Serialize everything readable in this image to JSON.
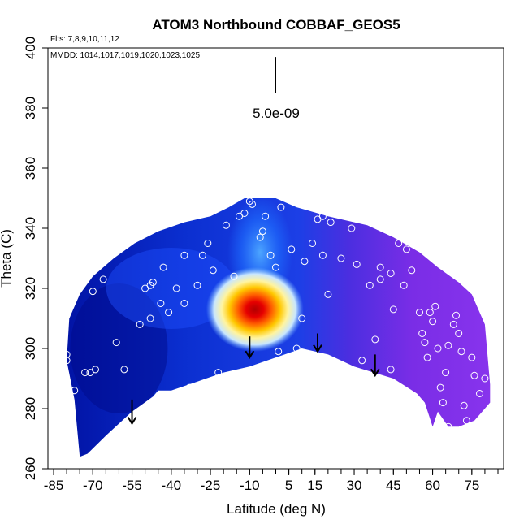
{
  "chart_data": {
    "type": "heatmap",
    "title": "ATOM3 Northbound COBBAF_GEOS5",
    "subtitle_flights": "Flts: 7,8,9,10,11,12",
    "subtitle_dates": "MMDD: 1014,1017,1019,1020,1023,1025",
    "xlabel": "Latitude (deg N)",
    "ylabel": "Theta (C)",
    "xlim": [
      -85,
      85
    ],
    "ylim": [
      260,
      400
    ],
    "x_ticks": [
      -85,
      -70,
      -55,
      -40,
      -25,
      -10,
      5,
      15,
      30,
      45,
      60,
      75
    ],
    "y_ticks": [
      260,
      280,
      300,
      320,
      340,
      360,
      380,
      400
    ],
    "scale_bar_label": "5.0e-09",
    "grid": false,
    "colormap": [
      "#00008b",
      "#0033cc",
      "#1e64ff",
      "#6fb4ff",
      "#c8e6ff",
      "#fff4a0",
      "#ffc800",
      "#ff6000",
      "#e60000",
      "#b20000",
      "#8a2be2"
    ],
    "field_upper_boundary": [
      {
        "x": -54,
        "y": 335
      },
      {
        "x": -45,
        "y": 339
      },
      {
        "x": -35,
        "y": 342
      },
      {
        "x": -25,
        "y": 344
      },
      {
        "x": -18,
        "y": 347
      },
      {
        "x": -12,
        "y": 350
      },
      {
        "x": 0,
        "y": 350
      },
      {
        "x": 8,
        "y": 347
      },
      {
        "x": 20,
        "y": 344
      },
      {
        "x": 35,
        "y": 341
      },
      {
        "x": 45,
        "y": 337
      },
      {
        "x": 55,
        "y": 332
      },
      {
        "x": 62,
        "y": 327
      },
      {
        "x": 70,
        "y": 322
      },
      {
        "x": 75,
        "y": 318
      },
      {
        "x": 80,
        "y": 308
      }
    ],
    "field_right_boundary": [
      {
        "x": 82,
        "y": 288
      },
      {
        "x": 82,
        "y": 282
      }
    ],
    "field_lower_boundary": [
      {
        "x": 76,
        "y": 276
      },
      {
        "x": 70,
        "y": 274
      },
      {
        "x": 66,
        "y": 274
      },
      {
        "x": 62,
        "y": 279
      },
      {
        "x": 60,
        "y": 274
      },
      {
        "x": 57,
        "y": 282
      },
      {
        "x": 54,
        "y": 285
      },
      {
        "x": 45,
        "y": 290
      },
      {
        "x": 30,
        "y": 294
      },
      {
        "x": 20,
        "y": 298
      },
      {
        "x": 10,
        "y": 300
      },
      {
        "x": 0,
        "y": 297
      },
      {
        "x": -10,
        "y": 294
      },
      {
        "x": -20,
        "y": 292
      },
      {
        "x": -30,
        "y": 289
      },
      {
        "x": -40,
        "y": 286
      },
      {
        "x": -45,
        "y": 286
      },
      {
        "x": -47,
        "y": 284
      },
      {
        "x": -55,
        "y": 279
      },
      {
        "x": -65,
        "y": 271
      },
      {
        "x": -72,
        "y": 265
      },
      {
        "x": -75,
        "y": 264
      }
    ],
    "field_left_boundary": [
      {
        "x": -77,
        "y": 283
      },
      {
        "x": -80,
        "y": 296
      },
      {
        "x": -79,
        "y": 310
      },
      {
        "x": -75,
        "y": 318
      },
      {
        "x": -70,
        "y": 324
      },
      {
        "x": -62,
        "y": 330
      }
    ],
    "field_features": [
      {
        "name": "background-low",
        "x": -60,
        "y": 300,
        "value": 0.05
      },
      {
        "name": "mid-blue",
        "x": -40,
        "y": 320,
        "value": 0.18
      },
      {
        "name": "light-column",
        "x": -6,
        "y": 332,
        "value": 0.35
      },
      {
        "name": "maximum",
        "x": -8,
        "y": 313,
        "value": 1.0
      },
      {
        "name": "purple-north",
        "x": 50,
        "y": 305,
        "value": -1
      }
    ],
    "sample_points": [
      {
        "x": -80,
        "y": 311
      },
      {
        "x": -80,
        "y": 298
      },
      {
        "x": -80,
        "y": 296
      },
      {
        "x": -77,
        "y": 286
      },
      {
        "x": -73,
        "y": 292
      },
      {
        "x": -71,
        "y": 292
      },
      {
        "x": -69,
        "y": 293
      },
      {
        "x": -71,
        "y": 263
      },
      {
        "x": -64,
        "y": 270
      },
      {
        "x": -61,
        "y": 302
      },
      {
        "x": -58,
        "y": 293
      },
      {
        "x": -66,
        "y": 323
      },
      {
        "x": -70,
        "y": 319
      },
      {
        "x": -52,
        "y": 308
      },
      {
        "x": -50,
        "y": 320
      },
      {
        "x": -48,
        "y": 321
      },
      {
        "x": -47,
        "y": 322
      },
      {
        "x": -48,
        "y": 310
      },
      {
        "x": -44,
        "y": 315
      },
      {
        "x": -43,
        "y": 327
      },
      {
        "x": -41,
        "y": 312
      },
      {
        "x": -38,
        "y": 320
      },
      {
        "x": -35,
        "y": 331
      },
      {
        "x": -35,
        "y": 315
      },
      {
        "x": -33,
        "y": 287
      },
      {
        "x": -30,
        "y": 321
      },
      {
        "x": -29,
        "y": 287
      },
      {
        "x": -28,
        "y": 331
      },
      {
        "x": -26,
        "y": 335
      },
      {
        "x": -24,
        "y": 326
      },
      {
        "x": -22,
        "y": 292
      },
      {
        "x": -19,
        "y": 341
      },
      {
        "x": -16,
        "y": 324
      },
      {
        "x": -14,
        "y": 344
      },
      {
        "x": -12,
        "y": 345
      },
      {
        "x": -10,
        "y": 349
      },
      {
        "x": -9,
        "y": 348
      },
      {
        "x": -6,
        "y": 337
      },
      {
        "x": -5,
        "y": 339
      },
      {
        "x": -4,
        "y": 344
      },
      {
        "x": -2,
        "y": 331
      },
      {
        "x": 0,
        "y": 327
      },
      {
        "x": 1,
        "y": 299
      },
      {
        "x": 2,
        "y": 347
      },
      {
        "x": 6,
        "y": 333
      },
      {
        "x": 8,
        "y": 300
      },
      {
        "x": 10,
        "y": 310
      },
      {
        "x": 11,
        "y": 329
      },
      {
        "x": 14,
        "y": 335
      },
      {
        "x": 16,
        "y": 343
      },
      {
        "x": 18,
        "y": 344
      },
      {
        "x": 18,
        "y": 331
      },
      {
        "x": 20,
        "y": 318
      },
      {
        "x": 21,
        "y": 342
      },
      {
        "x": 25,
        "y": 330
      },
      {
        "x": 29,
        "y": 340
      },
      {
        "x": 31,
        "y": 328
      },
      {
        "x": 33,
        "y": 296
      },
      {
        "x": 36,
        "y": 321
      },
      {
        "x": 38,
        "y": 303
      },
      {
        "x": 40,
        "y": 327
      },
      {
        "x": 40,
        "y": 323
      },
      {
        "x": 44,
        "y": 293
      },
      {
        "x": 44,
        "y": 325
      },
      {
        "x": 45,
        "y": 313
      },
      {
        "x": 47,
        "y": 335
      },
      {
        "x": 49,
        "y": 321
      },
      {
        "x": 50,
        "y": 333
      },
      {
        "x": 52,
        "y": 326
      },
      {
        "x": 55,
        "y": 312
      },
      {
        "x": 56,
        "y": 305
      },
      {
        "x": 57,
        "y": 302
      },
      {
        "x": 58,
        "y": 297
      },
      {
        "x": 59,
        "y": 312
      },
      {
        "x": 60,
        "y": 309
      },
      {
        "x": 61,
        "y": 314
      },
      {
        "x": 62,
        "y": 300
      },
      {
        "x": 63,
        "y": 287
      },
      {
        "x": 64,
        "y": 282
      },
      {
        "x": 65,
        "y": 292
      },
      {
        "x": 66,
        "y": 301
      },
      {
        "x": 68,
        "y": 308
      },
      {
        "x": 69,
        "y": 311
      },
      {
        "x": 70,
        "y": 305
      },
      {
        "x": 71,
        "y": 299
      },
      {
        "x": 72,
        "y": 281
      },
      {
        "x": 73,
        "y": 276
      },
      {
        "x": 75,
        "y": 297
      },
      {
        "x": 76,
        "y": 291
      },
      {
        "x": 78,
        "y": 285
      },
      {
        "x": 80,
        "y": 290
      },
      {
        "x": 66,
        "y": 274
      },
      {
        "x": 63,
        "y": 275
      }
    ],
    "arrows": [
      {
        "x": -55,
        "y_start": 283,
        "y_end": 275
      },
      {
        "x": -10,
        "y_start": 304,
        "y_end": 297
      },
      {
        "x": 16,
        "y_start": 305,
        "y_end": 299
      },
      {
        "x": 38,
        "y_start": 298,
        "y_end": 291
      }
    ],
    "scale_bar": {
      "x": 0,
      "y_top": 397,
      "y_bottom": 385
    }
  }
}
